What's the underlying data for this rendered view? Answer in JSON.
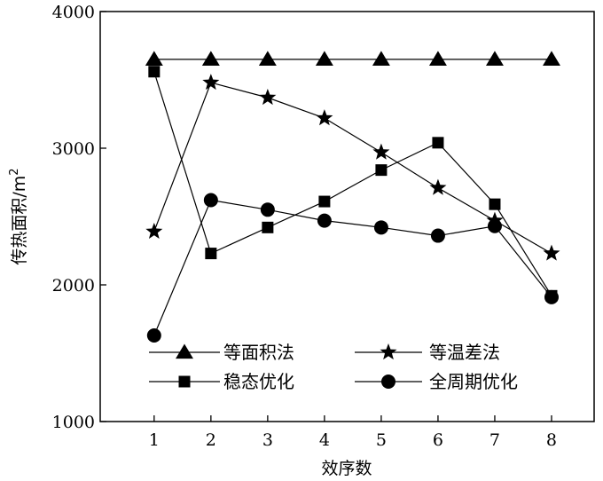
{
  "chart_data": {
    "type": "line",
    "xlabel": "效序数",
    "ylabel": "传热面积/m",
    "ylabel_sup": "2",
    "x": [
      1,
      2,
      3,
      4,
      5,
      6,
      7,
      8
    ],
    "xticks": [
      "1",
      "2",
      "3",
      "4",
      "5",
      "6",
      "7",
      "8"
    ],
    "xlim": [
      0.05,
      8.75
    ],
    "ylim": [
      1000,
      4000
    ],
    "yticks": [
      "1000",
      "2000",
      "3000",
      "4000"
    ],
    "grid": false,
    "legend_position": "bottom-center",
    "series": [
      {
        "name": "等面积法",
        "marker": "triangle",
        "values": [
          3650,
          3650,
          3650,
          3650,
          3650,
          3650,
          3650,
          3650
        ]
      },
      {
        "name": "等温差法",
        "marker": "star",
        "values": [
          2390,
          3480,
          3370,
          3220,
          2970,
          2710,
          2470,
          2230
        ]
      },
      {
        "name": "稳态优化",
        "marker": "square",
        "values": [
          3560,
          2230,
          2420,
          2610,
          2840,
          3040,
          2590,
          1920
        ]
      },
      {
        "name": "全周期优化",
        "marker": "circle",
        "values": [
          1630,
          2620,
          2550,
          2470,
          2420,
          2360,
          2430,
          1910
        ]
      }
    ]
  }
}
